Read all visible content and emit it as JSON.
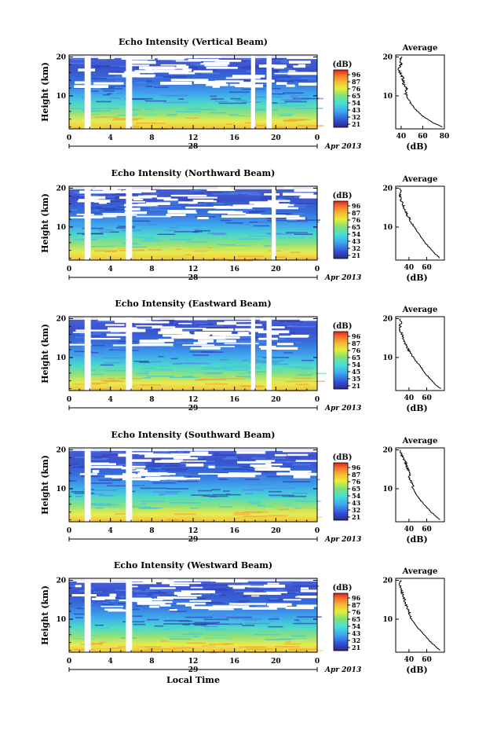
{
  "chart_data": [
    {
      "type": "heatmap",
      "title": "Echo Intensity (Vertical Beam)",
      "ylabel": "Height (km)",
      "xlabel": "",
      "x_ticks": [
        "0",
        "4",
        "8",
        "12",
        "16",
        "20",
        "0"
      ],
      "y_ticks": [
        "20",
        "10"
      ],
      "xlim": [
        0,
        24
      ],
      "ylim": [
        1.5,
        20.5
      ],
      "date_day": "28",
      "date_month_year": "Apr 2013",
      "gaps_hours": [
        [
          1.5,
          2.1
        ],
        [
          5.5,
          6.1
        ],
        [
          17.6,
          18.0
        ],
        [
          19.1,
          19.6
        ]
      ],
      "colorbar": {
        "unit": "(dB)",
        "ticks": [
          "96",
          "87",
          "76",
          "65",
          "54",
          "43",
          "32",
          "21"
        ]
      },
      "average_profile": {
        "title": "Average",
        "xlabel": "(dB)",
        "x_ticks": [
          "40",
          "60",
          "80"
        ],
        "y_ticks": [
          "20",
          "10"
        ],
        "xlim": [
          35,
          80
        ],
        "ylim": [
          1.5,
          20.5
        ],
        "height_km": [
          2,
          3,
          4,
          5,
          6,
          7,
          8,
          9,
          10,
          11,
          12,
          13,
          14,
          15,
          16,
          17,
          18,
          19,
          20
        ],
        "value_db": [
          78,
          70,
          64,
          59,
          55,
          52,
          49,
          47,
          45,
          44,
          45,
          42,
          42,
          41,
          39,
          38,
          40,
          39,
          41
        ]
      }
    },
    {
      "type": "heatmap",
      "title": "Echo Intensity (Northward Beam)",
      "ylabel": "Height (km)",
      "xlabel": "",
      "x_ticks": [
        "0",
        "4",
        "8",
        "12",
        "16",
        "20",
        "0"
      ],
      "y_ticks": [
        "20",
        "10"
      ],
      "xlim": [
        0,
        24
      ],
      "ylim": [
        1.5,
        20.5
      ],
      "date_day": "28",
      "date_month_year": "Apr 2013",
      "gaps_hours": [
        [
          1.5,
          2.1
        ],
        [
          5.5,
          6.1
        ],
        [
          19.6,
          20.0
        ]
      ],
      "colorbar": {
        "unit": "(dB)",
        "ticks": [
          "96",
          "87",
          "76",
          "65",
          "54",
          "43",
          "32",
          "21"
        ]
      },
      "average_profile": {
        "title": "Average",
        "xlabel": "(dB)",
        "x_ticks": [
          "40",
          "60"
        ],
        "y_ticks": [
          "20",
          "10"
        ],
        "xlim": [
          25,
          80
        ],
        "ylim": [
          1.5,
          20.5
        ],
        "height_km": [
          2,
          3,
          4,
          5,
          6,
          7,
          8,
          9,
          10,
          11,
          12,
          13,
          14,
          15,
          16,
          17,
          18,
          19,
          20
        ],
        "value_db": [
          75,
          70,
          66,
          62,
          58,
          55,
          52,
          49,
          46,
          43,
          41,
          38,
          36,
          34,
          33,
          31,
          30,
          31,
          30
        ]
      }
    },
    {
      "type": "heatmap",
      "title": "Echo Intensity (Eastward Beam)",
      "ylabel": "Height (km)",
      "xlabel": "",
      "x_ticks": [
        "0",
        "4",
        "8",
        "12",
        "16",
        "20",
        "0"
      ],
      "y_ticks": [
        "20",
        "10"
      ],
      "xlim": [
        0,
        24
      ],
      "ylim": [
        1.5,
        20.5
      ],
      "date_day": "29",
      "date_month_year": "Apr 2013",
      "gaps_hours": [
        [
          1.5,
          2.1
        ],
        [
          5.5,
          6.1
        ],
        [
          17.6,
          18.0
        ],
        [
          19.1,
          19.6
        ]
      ],
      "colorbar": {
        "unit": "(dB)",
        "ticks": [
          "96",
          "87",
          "76",
          "65",
          "54",
          "45",
          "35",
          "21"
        ]
      },
      "average_profile": {
        "title": "Average",
        "xlabel": "(dB)",
        "x_ticks": [
          "40",
          "60"
        ],
        "y_ticks": [
          "20",
          "10"
        ],
        "xlim": [
          25,
          80
        ],
        "ylim": [
          1.5,
          20.5
        ],
        "height_km": [
          2,
          3,
          4,
          5,
          6,
          7,
          8,
          9,
          10,
          11,
          12,
          13,
          14,
          15,
          16,
          17,
          18,
          19,
          20
        ],
        "value_db": [
          76,
          70,
          66,
          62,
          58,
          55,
          52,
          48,
          45,
          42,
          39,
          37,
          35,
          33,
          32,
          30,
          30,
          31,
          30
        ]
      }
    },
    {
      "type": "heatmap",
      "title": "Echo Intensity (Southward Beam)",
      "ylabel": "Height (km)",
      "xlabel": "",
      "x_ticks": [
        "0",
        "4",
        "8",
        "12",
        "16",
        "20",
        "0"
      ],
      "y_ticks": [
        "20",
        "10"
      ],
      "xlim": [
        0,
        24
      ],
      "ylim": [
        1.5,
        20.5
      ],
      "date_day": "29",
      "date_month_year": "Apr 2013",
      "gaps_hours": [
        [
          1.5,
          2.1
        ],
        [
          5.5,
          6.1
        ]
      ],
      "colorbar": {
        "unit": "(dB)",
        "ticks": [
          "96",
          "87",
          "76",
          "65",
          "54",
          "43",
          "32",
          "21"
        ]
      },
      "average_profile": {
        "title": "Average",
        "xlabel": "(dB)",
        "x_ticks": [
          "40",
          "60"
        ],
        "y_ticks": [
          "20",
          "10"
        ],
        "xlim": [
          25,
          80
        ],
        "ylim": [
          1.5,
          20.5
        ],
        "height_km": [
          2,
          3,
          4,
          5,
          6,
          7,
          8,
          9,
          10,
          11,
          12,
          13,
          14,
          15,
          16,
          17,
          18,
          19,
          20
        ],
        "value_db": [
          75,
          70,
          65,
          61,
          57,
          53,
          50,
          47,
          45,
          44,
          42,
          40,
          41,
          39,
          37,
          36,
          33,
          31,
          30
        ]
      }
    },
    {
      "type": "heatmap",
      "title": "Echo Intensity (Westward Beam)",
      "ylabel": "Height (km)",
      "xlabel": "Local Time",
      "x_ticks": [
        "0",
        "4",
        "8",
        "12",
        "16",
        "20",
        "0"
      ],
      "y_ticks": [
        "20",
        "10"
      ],
      "xlim": [
        0,
        24
      ],
      "ylim": [
        1.5,
        20.5
      ],
      "date_day": "29",
      "date_month_year": "Apr 2013",
      "gaps_hours": [
        [
          1.5,
          2.1
        ],
        [
          5.5,
          6.1
        ]
      ],
      "colorbar": {
        "unit": "(dB)",
        "ticks": [
          "96",
          "87",
          "76",
          "65",
          "54",
          "43",
          "32",
          "21"
        ]
      },
      "average_profile": {
        "title": "Average",
        "xlabel": "(dB)",
        "x_ticks": [
          "40",
          "60"
        ],
        "y_ticks": [
          "20",
          "10"
        ],
        "xlim": [
          25,
          80
        ],
        "ylim": [
          1.5,
          20.5
        ],
        "height_km": [
          2,
          3,
          4,
          5,
          6,
          7,
          8,
          9,
          10,
          11,
          12,
          13,
          14,
          15,
          16,
          17,
          18,
          19,
          20
        ],
        "value_db": [
          75,
          70,
          65,
          61,
          57,
          53,
          49,
          46,
          43,
          41,
          40,
          38,
          36,
          35,
          33,
          32,
          31,
          30,
          30
        ]
      }
    }
  ]
}
